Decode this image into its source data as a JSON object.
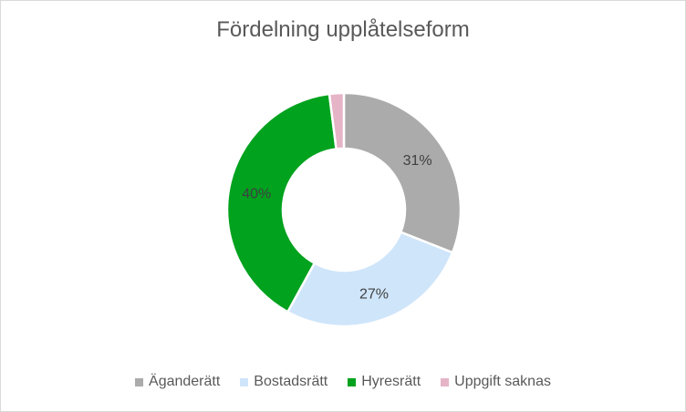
{
  "chart_data": {
    "type": "pie",
    "donut": true,
    "title": "Fördelning upplåtelseform",
    "legend_position": "bottom",
    "categories": [
      "Äganderätt",
      "Bostadsrätt",
      "Hyresrätt",
      "Uppgift saknas"
    ],
    "values": [
      31,
      27,
      40,
      2
    ],
    "data_labels": [
      "31%",
      "27%",
      "40%",
      ""
    ],
    "colors": [
      "#ababab",
      "#cfe5fa",
      "#00a21e",
      "#e5b4c7"
    ]
  }
}
